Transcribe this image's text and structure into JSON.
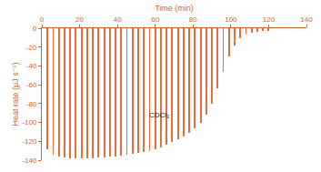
{
  "chart_data": {
    "type": "bar",
    "x_label": "Time (min)",
    "y_label": "Heat rate (μJ s⁻¹)",
    "x": [
      3,
      6,
      9,
      12,
      15,
      18,
      21,
      24,
      27,
      30,
      33,
      36,
      39,
      42,
      45,
      48,
      51,
      54,
      57,
      60,
      63,
      66,
      69,
      72,
      75,
      78,
      81,
      84,
      87,
      90,
      93,
      96,
      99,
      102,
      105,
      108,
      111,
      114,
      117,
      120
    ],
    "values": [
      -128,
      -134,
      -136,
      -137,
      -138,
      -138,
      -138,
      -138,
      -138,
      -137,
      -137,
      -136,
      -136,
      -135,
      -134,
      -133,
      -132,
      -131,
      -130,
      -128,
      -126,
      -124,
      -121,
      -118,
      -115,
      -111,
      -106,
      -100,
      -92,
      -80,
      -64,
      -46,
      -30,
      -18,
      -11,
      -7,
      -5,
      -4,
      -3,
      -3
    ],
    "color": "#e0703c",
    "xlim": [
      0,
      140
    ],
    "xticks": [
      0,
      20,
      40,
      60,
      80,
      100,
      120,
      140
    ],
    "ylim": [
      -140,
      0
    ],
    "yticks": [
      0,
      -20,
      -40,
      -60,
      -80,
      -100,
      -120,
      -140
    ],
    "grid": false,
    "annotations": [
      {
        "text": "CDCl₃",
        "x": 62,
        "y": -92
      }
    ]
  }
}
